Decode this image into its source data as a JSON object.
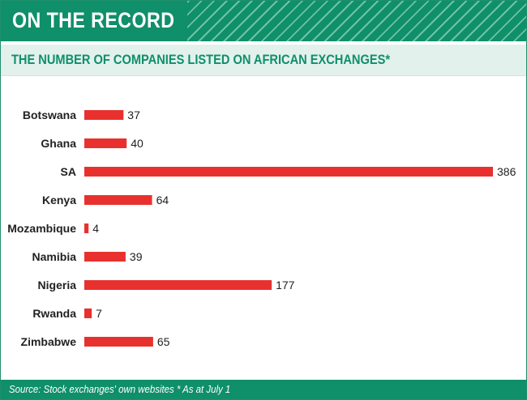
{
  "header": {
    "title": "ON THE RECORD"
  },
  "chart_data": {
    "type": "bar",
    "orientation": "horizontal",
    "title": "THE NUMBER OF COMPANIES LISTED ON AFRICAN EXCHANGES*",
    "categories": [
      "Botswana",
      "Ghana",
      "SA",
      "Kenya",
      "Mozambique",
      "Namibia",
      "Nigeria",
      "Rwanda",
      "Zimbabwe"
    ],
    "values": [
      37,
      40,
      386,
      64,
      4,
      39,
      177,
      7,
      65
    ],
    "xlabel": "",
    "ylabel": "",
    "xlim": [
      0,
      386
    ],
    "grid": false,
    "data_labels": true,
    "bar_color": "#e8312f"
  },
  "footer": {
    "source": "Source: Stock exchanges' own websites * As at July 1"
  },
  "colors": {
    "brand": "#0f8f6a",
    "subtitle_bg": "#e2f1ec",
    "bar": "#e8312f"
  }
}
